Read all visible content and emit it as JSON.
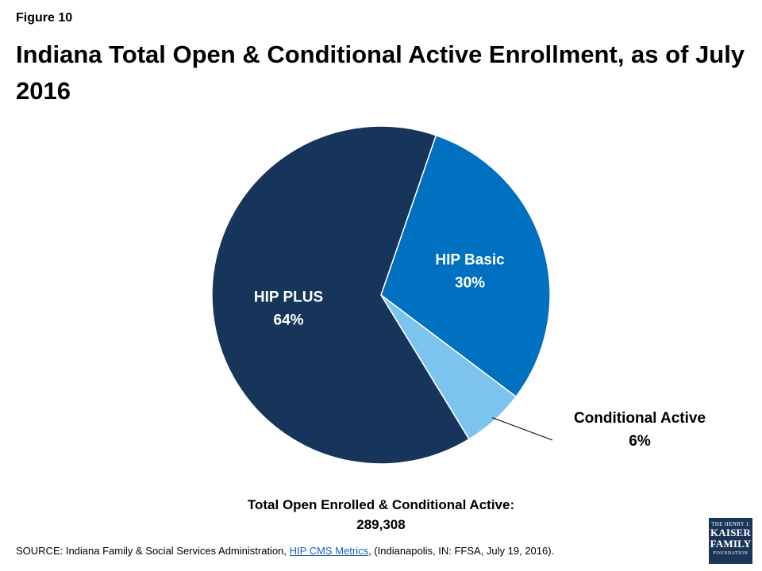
{
  "figure_label": "Figure 10",
  "title": "Indiana Total Open & Conditional Active Enrollment, as of July 2016",
  "chart_data": {
    "type": "pie",
    "title": "Indiana Total Open & Conditional Active Enrollment, as of July 2016",
    "slices": [
      {
        "label": "HIP Basic",
        "value": 30,
        "display": "30%",
        "color": "#0070c0"
      },
      {
        "label": "Conditional Active",
        "value": 6,
        "display": "6%",
        "color": "#7cc4ed"
      },
      {
        "label": "HIP PLUS",
        "value": 64,
        "display": "64%",
        "color": "#17355a"
      }
    ],
    "start_angle_deg": 19
  },
  "total": {
    "label": "Total Open Enrolled & Conditional Active:",
    "value": "289,308"
  },
  "source": {
    "prefix": "SOURCE: Indiana Family & Social Services Administration, ",
    "link": "HIP CMS Metrics",
    "suffix": ", (Indianapolis, IN: FFSA, July 19, 2016)."
  },
  "logo": {
    "line1": "THE HENRY J.",
    "line2": "KAISER",
    "line3": "FAMILY",
    "line4": "FOUNDATION"
  }
}
